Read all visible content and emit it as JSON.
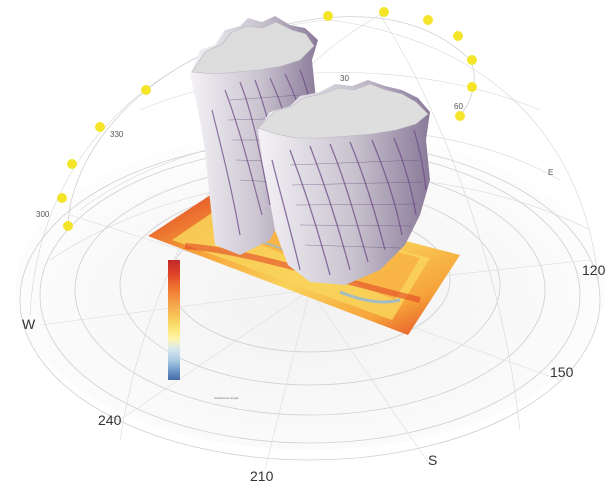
{
  "compass": {
    "cardinals": {
      "W": "W",
      "S": "S",
      "E": "E"
    },
    "azimuths": {
      "a300": "300",
      "a330": "330",
      "a30": "30",
      "a60": "60",
      "a120": "120",
      "a150": "150",
      "a210": "210",
      "a240": "240"
    }
  },
  "sun_path": {
    "marker_color": "#f5e52a",
    "marker_count": 17
  },
  "legend": {
    "caption": "Irradiance Angle",
    "tick_labels": [
      "",
      "",
      "",
      "",
      "",
      "",
      "",
      "",
      "",
      "",
      ""
    ],
    "colors": [
      "#c0282a",
      "#e04428",
      "#f07830",
      "#f5a24a",
      "#f8c95a",
      "#fbe77a",
      "#fff5b0",
      "#d8e8f0",
      "#a9c8e2",
      "#6f9ac8",
      "#4669a8"
    ]
  },
  "colors": {
    "massing_top": "#dcdcdc",
    "massing_side": "#ece9ef",
    "massing_stripe": "#6d4a88",
    "ground_hot": "#e03c24",
    "ground_warm": "#f6a33a",
    "ground_mild": "#f9d35a"
  }
}
